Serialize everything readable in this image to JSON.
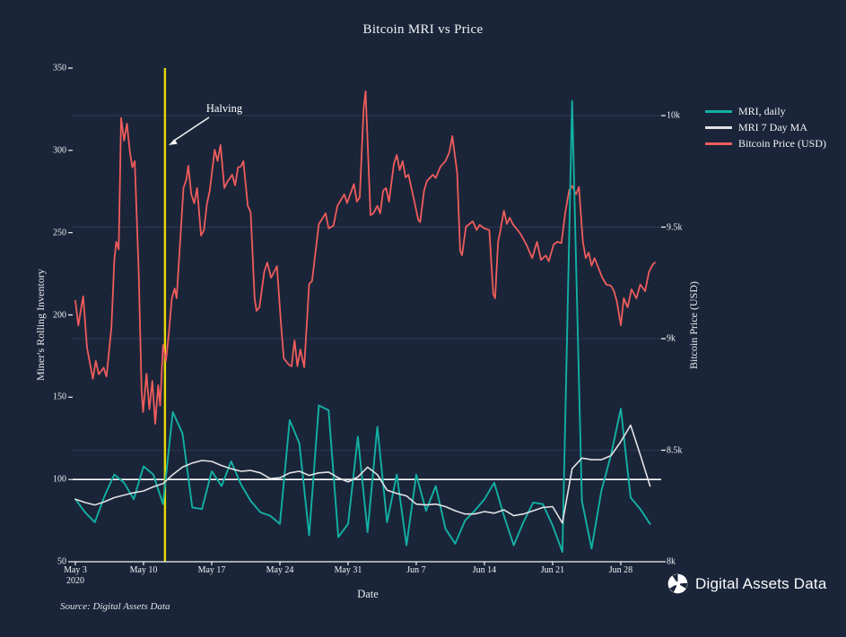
{
  "title": "Bitcoin MRI vs Price",
  "annotation": {
    "text": "Halving",
    "day": 9.2,
    "line_color": "#e8d909"
  },
  "source": "Source: Digital Assets Data",
  "logo_text": "Digital Assets Data",
  "colors": {
    "background": "#1a2539",
    "mri_daily": "#12b0a4",
    "mri_ma": "#e2e2e6",
    "price": "#ef5c5c",
    "halving": "#e8d909",
    "reference": "#ffffff",
    "grid": "#2c3a54",
    "axis": "#f5f5f5"
  },
  "legend": {
    "items": [
      {
        "label": "MRI, daily",
        "color": "#12b0a4"
      },
      {
        "label": "MRI 7 Day MA",
        "color": "#e2e2e6"
      },
      {
        "label": "Bitcoin Price (USD)",
        "color": "#ef5c5c"
      }
    ]
  },
  "left_axis": {
    "label": "Miner's Rolling Inventory",
    "min": 50,
    "max": 350,
    "ticks": [
      350,
      300,
      250,
      200,
      150,
      100,
      50
    ]
  },
  "right_axis": {
    "label": "Bitcoin Price (USD)",
    "min": 8000,
    "max": 10000,
    "ticks": [
      {
        "label": "10k",
        "value": 10000
      },
      {
        "label": "9.5k",
        "value": 9500
      },
      {
        "label": "9k",
        "value": 9000
      },
      {
        "label": "8.5k",
        "value": 8500
      },
      {
        "label": "8k",
        "value": 8000
      }
    ]
  },
  "x_axis": {
    "label": "Date",
    "ticks": [
      {
        "label": "May 3",
        "sub": "2020",
        "day": 0
      },
      {
        "label": "May 10",
        "day": 7
      },
      {
        "label": "May 17",
        "day": 14
      },
      {
        "label": "May 24",
        "day": 21
      },
      {
        "label": "May 31",
        "day": 28
      },
      {
        "label": "Jun 7",
        "day": 35
      },
      {
        "label": "Jun 14",
        "day": 42
      },
      {
        "label": "Jun 21",
        "day": 49
      },
      {
        "label": "Jun 28",
        "day": 56
      }
    ]
  },
  "chart_data": {
    "type": "line",
    "title": "Bitcoin MRI vs Price",
    "xlabel": "Date",
    "x_start_date": "2020-05-03",
    "x_unit": "days since May 3 2020",
    "grid": "horizontal, right-axis ticks only",
    "legend_position": "top-right",
    "left_ylim": [
      50,
      350
    ],
    "right_ylim": [
      8000,
      10000
    ],
    "reference_line_left_axis": 100,
    "halving_day": 9.2,
    "series": {
      "mri_daily": {
        "name": "MRI, daily",
        "axis": "left",
        "color": "#12b0a4",
        "values": [
          88,
          80,
          74,
          90,
          103,
          98,
          88,
          108,
          103,
          85,
          141,
          128,
          83,
          82,
          105,
          96,
          111,
          97,
          87,
          80,
          78,
          73,
          136,
          122,
          66,
          145,
          142,
          65,
          73,
          126,
          68,
          132,
          74,
          103,
          60,
          103,
          81,
          96,
          70,
          61,
          75,
          81,
          88,
          98,
          78,
          60,
          74,
          86,
          85,
          72,
          56,
          330,
          87,
          58,
          93,
          115,
          143,
          89,
          82,
          73
        ]
      },
      "mri_7day_ma": {
        "name": "MRI 7 Day MA",
        "axis": "left",
        "color": "#e2e2e6",
        "values": [
          88,
          86,
          84.5,
          86.5,
          89,
          90.5,
          92,
          93,
          95.5,
          97.5,
          103,
          107.5,
          110,
          111.5,
          111,
          108.5,
          106.5,
          105,
          105.5,
          104,
          100.5,
          101,
          104,
          105,
          102.5,
          104,
          104.5,
          101,
          98.5,
          101.5,
          107.5,
          103,
          93.5,
          91.5,
          90,
          85,
          84.5,
          85,
          83.5,
          81,
          79,
          79,
          80.5,
          79.5,
          81.5,
          78,
          79,
          81,
          83,
          83.5,
          73.5,
          106.5,
          113,
          112,
          112,
          114.5,
          123,
          133,
          115,
          96
        ]
      },
      "price": {
        "name": "Bitcoin Price (USD)",
        "axis": "right",
        "color": "#ef5c5c",
        "points": [
          [
            0,
            9170
          ],
          [
            0.3,
            9060
          ],
          [
            0.8,
            9190
          ],
          [
            1.2,
            8960
          ],
          [
            1.8,
            8820
          ],
          [
            2.1,
            8900
          ],
          [
            2.4,
            8840
          ],
          [
            2.9,
            8870
          ],
          [
            3.2,
            8830
          ],
          [
            3.7,
            9050
          ],
          [
            4.0,
            9350
          ],
          [
            4.2,
            9434
          ],
          [
            4.45,
            9400
          ],
          [
            4.7,
            9989
          ],
          [
            5.0,
            9888
          ],
          [
            5.3,
            9964
          ],
          [
            5.6,
            9836
          ],
          [
            5.85,
            9768
          ],
          [
            6.1,
            9796
          ],
          [
            6.5,
            9300
          ],
          [
            6.8,
            8771
          ],
          [
            6.95,
            8671
          ],
          [
            7.3,
            8843
          ],
          [
            7.6,
            8683
          ],
          [
            7.9,
            8811
          ],
          [
            8.2,
            8618
          ],
          [
            8.5,
            8791
          ],
          [
            8.7,
            8699
          ],
          [
            9.0,
            8972
          ],
          [
            9.3,
            8900
          ],
          [
            9.6,
            9024
          ],
          [
            9.9,
            9181
          ],
          [
            10.2,
            9225
          ],
          [
            10.4,
            9181
          ],
          [
            11.1,
            9675
          ],
          [
            11.4,
            9715
          ],
          [
            11.6,
            9775
          ],
          [
            11.9,
            9647
          ],
          [
            12.2,
            9607
          ],
          [
            12.5,
            9675
          ],
          [
            12.9,
            9462
          ],
          [
            13.2,
            9486
          ],
          [
            13.5,
            9603
          ],
          [
            13.8,
            9663
          ],
          [
            14.3,
            9847
          ],
          [
            14.6,
            9796
          ],
          [
            14.9,
            9868
          ],
          [
            15.3,
            9675
          ],
          [
            15.6,
            9703
          ],
          [
            16.1,
            9735
          ],
          [
            16.4,
            9687
          ],
          [
            16.7,
            9768
          ],
          [
            17.0,
            9772
          ],
          [
            17.25,
            9796
          ],
          [
            17.7,
            9595
          ],
          [
            18.0,
            9567
          ],
          [
            18.4,
            9181
          ],
          [
            18.6,
            9125
          ],
          [
            18.9,
            9141
          ],
          [
            19.4,
            9301
          ],
          [
            19.7,
            9341
          ],
          [
            20.1,
            9273
          ],
          [
            20.7,
            9325
          ],
          [
            21.1,
            9072
          ],
          [
            21.4,
            8912
          ],
          [
            21.9,
            8884
          ],
          [
            22.2,
            8876
          ],
          [
            22.5,
            8992
          ],
          [
            22.8,
            8876
          ],
          [
            23.1,
            8952
          ],
          [
            23.5,
            8872
          ],
          [
            24.0,
            9245
          ],
          [
            24.3,
            9258
          ],
          [
            25.0,
            9514
          ],
          [
            25.7,
            9562
          ],
          [
            26.0,
            9494
          ],
          [
            26.5,
            9507
          ],
          [
            26.9,
            9595
          ],
          [
            27.6,
            9647
          ],
          [
            27.9,
            9608
          ],
          [
            28.6,
            9693
          ],
          [
            28.9,
            9614
          ],
          [
            29.2,
            9634
          ],
          [
            29.6,
            10036
          ],
          [
            29.8,
            10109
          ],
          [
            30.3,
            9554
          ],
          [
            30.6,
            9562
          ],
          [
            31.0,
            9595
          ],
          [
            31.3,
            9562
          ],
          [
            31.6,
            9663
          ],
          [
            31.9,
            9675
          ],
          [
            32.2,
            9614
          ],
          [
            32.7,
            9783
          ],
          [
            33.0,
            9823
          ],
          [
            33.3,
            9755
          ],
          [
            33.6,
            9796
          ],
          [
            33.9,
            9723
          ],
          [
            34.2,
            9735
          ],
          [
            34.5,
            9675
          ],
          [
            35.2,
            9534
          ],
          [
            35.4,
            9522
          ],
          [
            35.8,
            9663
          ],
          [
            36.1,
            9707
          ],
          [
            36.7,
            9735
          ],
          [
            37.0,
            9720
          ],
          [
            37.5,
            9772
          ],
          [
            38.0,
            9796
          ],
          [
            38.4,
            9836
          ],
          [
            38.7,
            9908
          ],
          [
            39.2,
            9743
          ],
          [
            39.5,
            9394
          ],
          [
            39.7,
            9374
          ],
          [
            40.1,
            9502
          ],
          [
            40.8,
            9526
          ],
          [
            41.2,
            9487
          ],
          [
            41.5,
            9510
          ],
          [
            42.0,
            9494
          ],
          [
            42.5,
            9487
          ],
          [
            42.9,
            9200
          ],
          [
            43.1,
            9181
          ],
          [
            43.4,
            9434
          ],
          [
            43.6,
            9477
          ],
          [
            44.0,
            9574
          ],
          [
            44.3,
            9514
          ],
          [
            44.6,
            9542
          ],
          [
            44.9,
            9514
          ],
          [
            45.7,
            9470
          ],
          [
            46.3,
            9422
          ],
          [
            46.9,
            9361
          ],
          [
            47.4,
            9434
          ],
          [
            47.8,
            9353
          ],
          [
            48.3,
            9373
          ],
          [
            48.6,
            9347
          ],
          [
            49.1,
            9422
          ],
          [
            49.5,
            9434
          ],
          [
            49.9,
            9428
          ],
          [
            50.3,
            9566
          ],
          [
            50.7,
            9667
          ],
          [
            51.0,
            9685
          ],
          [
            51.4,
            9647
          ],
          [
            51.7,
            9680
          ],
          [
            52.1,
            9434
          ],
          [
            52.4,
            9361
          ],
          [
            52.7,
            9386
          ],
          [
            53.0,
            9327
          ],
          [
            53.3,
            9361
          ],
          [
            54.1,
            9273
          ],
          [
            54.5,
            9243
          ],
          [
            55.0,
            9237
          ],
          [
            55.3,
            9213
          ],
          [
            55.6,
            9165
          ],
          [
            56.0,
            9060
          ],
          [
            56.3,
            9181
          ],
          [
            56.7,
            9140
          ],
          [
            57.1,
            9221
          ],
          [
            57.6,
            9181
          ],
          [
            58.0,
            9243
          ],
          [
            58.5,
            9213
          ],
          [
            58.9,
            9301
          ],
          [
            59.3,
            9333
          ],
          [
            59.5,
            9341
          ]
        ]
      }
    }
  }
}
